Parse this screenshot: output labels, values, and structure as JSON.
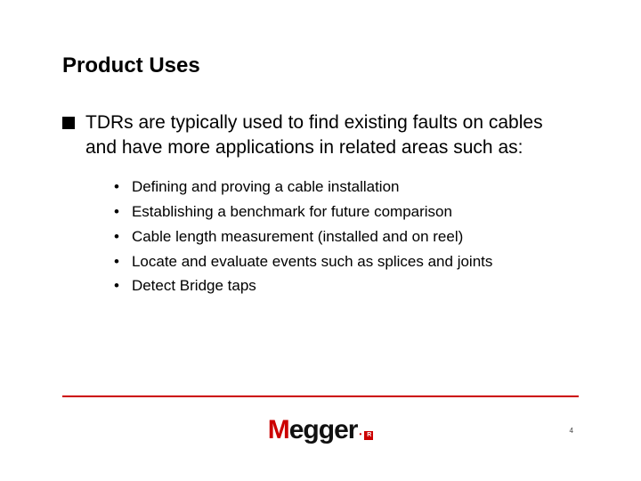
{
  "title": "Product Uses",
  "main_bullet": "TDRs are typically used to find existing faults on cables and have more applications in related areas such as:",
  "sub_items": [
    "Defining and proving a cable installation",
    "Establishing a benchmark for future comparison",
    "Cable length measurement (installed and on reel)",
    "Locate and evaluate events such as splices and joints",
    "Detect Bridge taps"
  ],
  "logo": {
    "first": "M",
    "rest": "egger",
    "reg": "R"
  },
  "page_number": "4",
  "colors": {
    "accent": "#cc0000",
    "text": "#000000",
    "bg": "#ffffff"
  }
}
